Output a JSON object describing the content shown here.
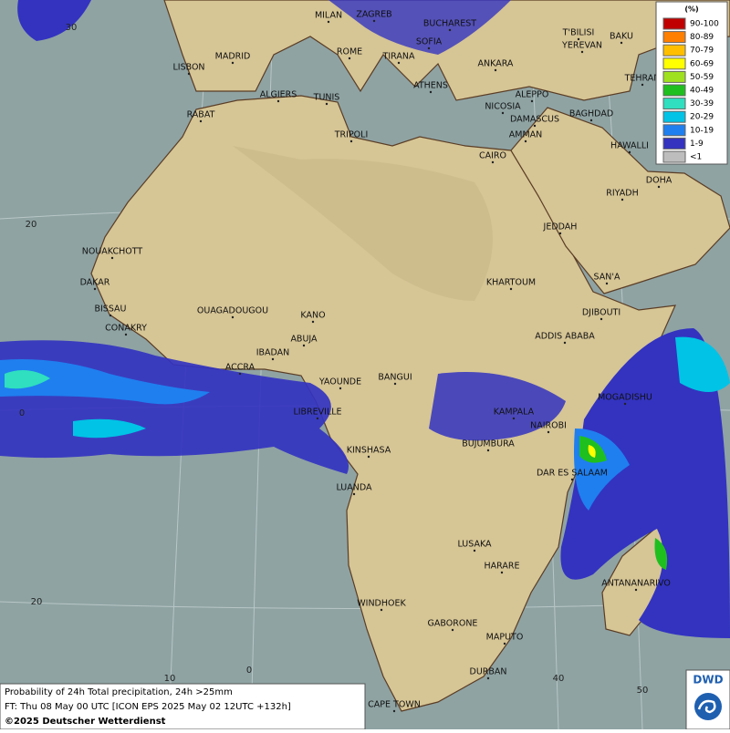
{
  "map": {
    "cities": [
      "MILAN",
      "ZAGREB",
      "BUCHAREST",
      "T'BILISI",
      "BAKU",
      "MADRID",
      "ROME",
      "SOFIA",
      "YEREVAN",
      "LISBON",
      "TIRANA",
      "ANKARA",
      "TEHRAN",
      "ALGIERS",
      "TUNIS",
      "ATHENS",
      "ALEPPO",
      "RABAT",
      "NICOSIA",
      "BAGHDAD",
      "DAMASCUS",
      "AMMAN",
      "TRIPOLI",
      "HAWALLI",
      "CAIRO",
      "DOHA",
      "RIYADH",
      "JEDDAH",
      "NOUAKCHOTT",
      "SAN'A",
      "DAKAR",
      "KHARTOUM",
      "BISSAU",
      "OUAGADOUGOU",
      "KANO",
      "DJIBOUTI",
      "CONAKRY",
      "ABUJA",
      "ADDIS ABABA",
      "IBADAN",
      "ACCRA",
      "YAOUNDE",
      "BANGUI",
      "MOGADISHU",
      "LIBREVILLE",
      "KAMPALA",
      "NAIROBI",
      "BUJUMBURA",
      "KINSHASA",
      "DAR ES SALAAM",
      "LUANDA",
      "LUSAKA",
      "HARARE",
      "ANTANANARIVO",
      "WINDHOEK",
      "GABORONE",
      "MAPUTO",
      "DURBAN",
      "CAPE TOWN"
    ],
    "lat_labels": [
      "30",
      "20",
      "0",
      "20"
    ],
    "lon_labels": [
      "10",
      "0",
      "40",
      "50"
    ]
  },
  "legend": {
    "title": "(%)",
    "entries": [
      {
        "label": "90-100",
        "color": "#c00000"
      },
      {
        "label": "80-89",
        "color": "#ff7f00"
      },
      {
        "label": "70-79",
        "color": "#ffbf00"
      },
      {
        "label": "60-69",
        "color": "#ffff00"
      },
      {
        "label": "50-59",
        "color": "#9fe01f"
      },
      {
        "label": "40-49",
        "color": "#1fbf1f"
      },
      {
        "label": "30-39",
        "color": "#2fdfbf"
      },
      {
        "label": "20-29",
        "color": "#00c3e6"
      },
      {
        "label": "10-19",
        "color": "#1f7fef"
      },
      {
        "label": "1-9",
        "color": "#3333c0"
      },
      {
        "label": "<1",
        "color": "#bdbdbd"
      }
    ]
  },
  "footer": {
    "line1": "Probability of 24h Total precipitation, 24h >25mm",
    "line2": "FT: Thu 08 May 00 UTC [ICON EPS 2025 May 02 12UTC +132h]",
    "copyright": "©2025 Deutscher Wetterdienst"
  },
  "logo": "DWD"
}
